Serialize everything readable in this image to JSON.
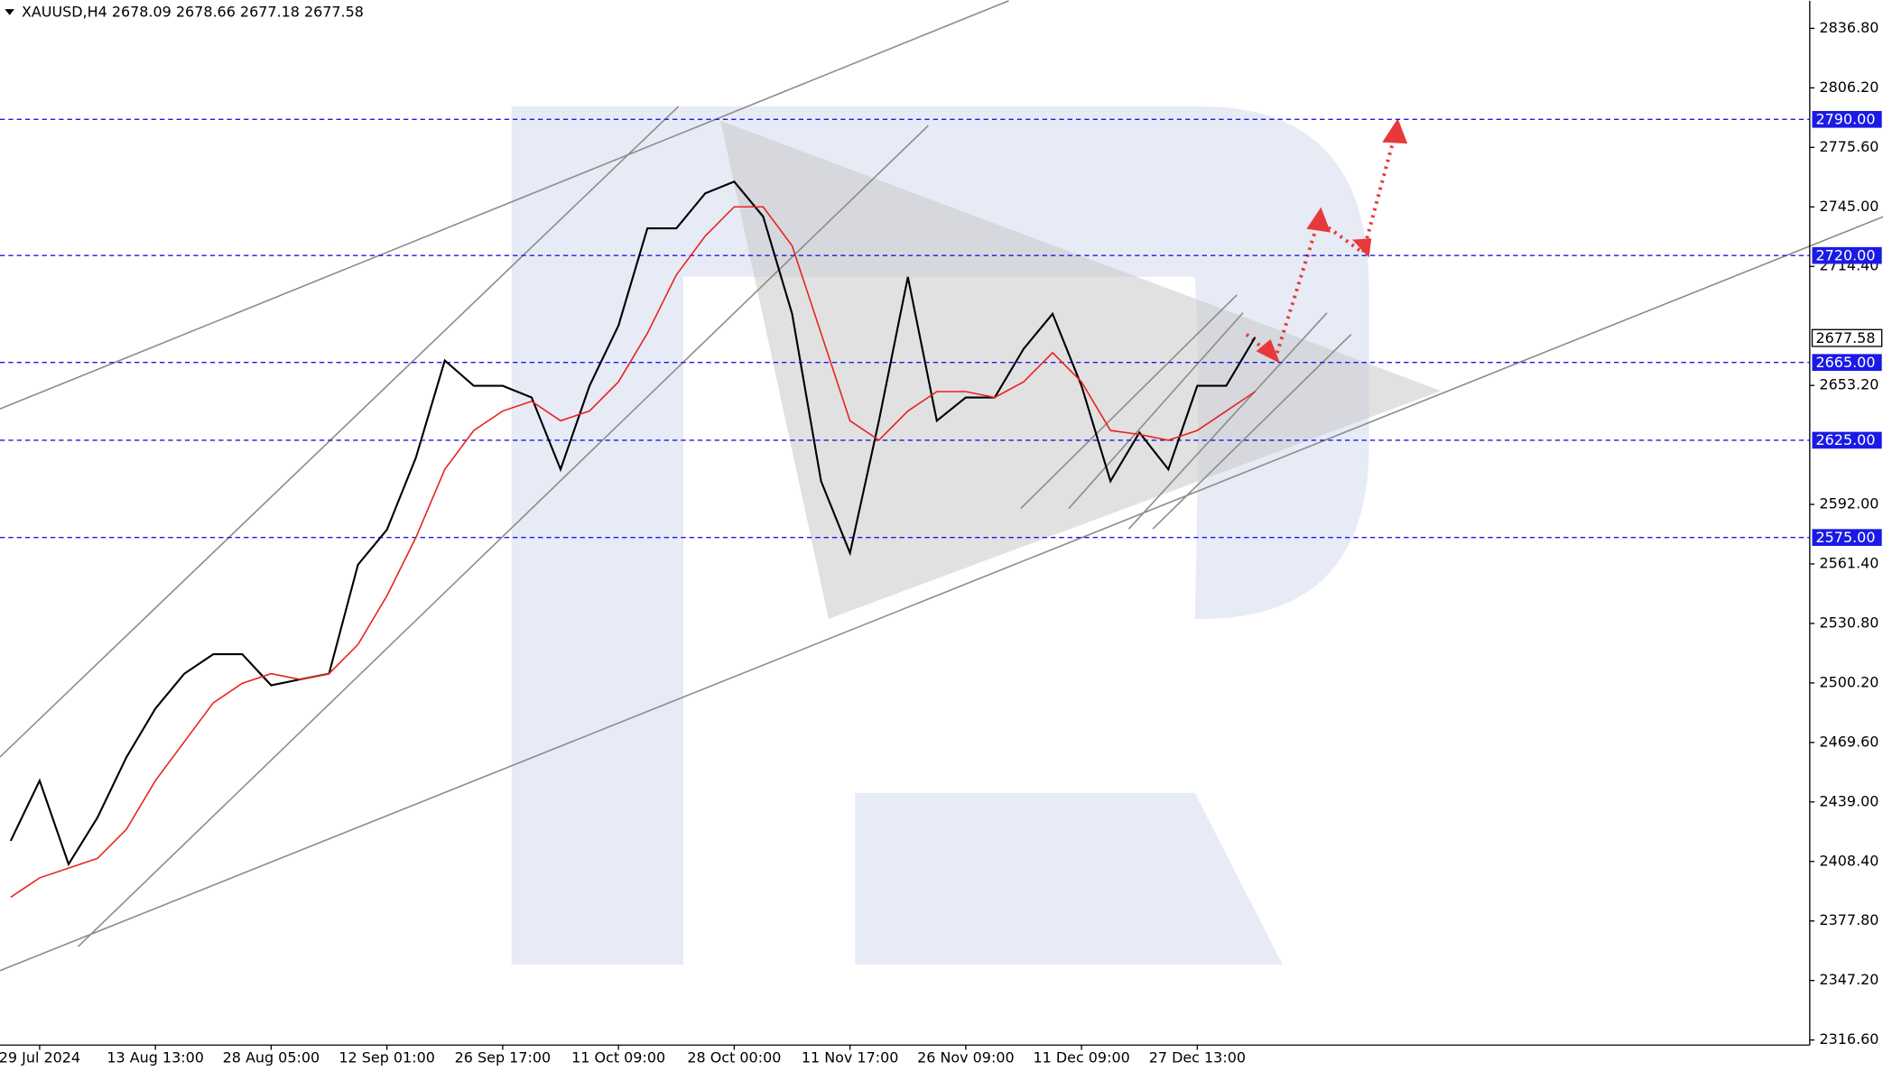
{
  "chart_data": {
    "type": "line",
    "title": "XAUUSD,H4 2678.09 2678.66 2677.18 2677.58",
    "categories": [
      null,
      "29 Jul 2024",
      null,
      null,
      null,
      "13 Aug 13:00",
      null,
      null,
      null,
      "28 Aug 05:00",
      null,
      null,
      null,
      "12 Sep 01:00",
      null,
      null,
      null,
      "26 Sep 17:00",
      null,
      null,
      null,
      "11 Oct 09:00",
      null,
      null,
      null,
      "28 Oct 00:00",
      null,
      null,
      null,
      "11 Nov 17:00",
      null,
      null,
      null,
      "26 Nov 09:00",
      null,
      null,
      null,
      "11 Dec 09:00",
      null,
      null,
      null,
      "27 Dec 13:00",
      null,
      null
    ],
    "series": [
      {
        "color": "#000000",
        "values": [
          2419,
          2450,
          2407,
          2431,
          2462,
          2487,
          2505,
          2515,
          2515,
          2499,
          2502,
          2505,
          2561,
          2579,
          2616,
          2666,
          2653,
          2653,
          2647,
          2610,
          2653,
          2684,
          2734,
          2734,
          2752,
          2758,
          2740,
          2690,
          2604,
          2567,
          2635,
          2709,
          2635,
          2647,
          2647,
          2672,
          2690,
          2653,
          2604,
          2629,
          2610,
          2653,
          2653,
          2678
        ]
      },
      {
        "color": "#e8231f",
        "values": [
          2390,
          2400,
          2405,
          2410,
          2425,
          2450,
          2470,
          2490,
          2500,
          2505,
          2502,
          2505,
          2520,
          2545,
          2575,
          2610,
          2630,
          2640,
          2645,
          2635,
          2640,
          2655,
          2680,
          2710,
          2730,
          2745,
          2745,
          2725,
          2680,
          2635,
          2625,
          2640,
          2650,
          2650,
          2647,
          2655,
          2670,
          2655,
          2630,
          2628,
          2625,
          2630,
          2640,
          2650
        ]
      }
    ],
    "ylim": [
      2314,
      2851
    ],
    "yticks": [
      {
        "value": 2316.6,
        "label": "2316.60"
      },
      {
        "value": 2347.2,
        "label": "2347.20"
      },
      {
        "value": 2377.8,
        "label": "2377.80"
      },
      {
        "value": 2408.4,
        "label": "2408.40"
      },
      {
        "value": 2439,
        "label": "2439.00"
      },
      {
        "value": 2469.6,
        "label": "2469.60"
      },
      {
        "value": 2500.2,
        "label": "2500.20"
      },
      {
        "value": 2530.8,
        "label": "2530.80"
      },
      {
        "value": 2561.4,
        "label": "2561.40"
      },
      {
        "value": 2592,
        "label": "2592.00"
      },
      {
        "value": 2653.2,
        "label": "2653.20"
      },
      {
        "value": 2714.4,
        "label": "2714.40"
      },
      {
        "value": 2745,
        "label": "2745.00"
      },
      {
        "value": 2775.6,
        "label": "2775.60"
      },
      {
        "value": 2806.2,
        "label": "2806.20"
      },
      {
        "value": 2836.8,
        "label": "2836.80"
      }
    ],
    "levels": [
      {
        "value": 2790,
        "label": "2790.00"
      },
      {
        "value": 2720,
        "label": "2720.00"
      },
      {
        "value": 2665,
        "label": "2665.00"
      },
      {
        "value": 2625,
        "label": "2625.00"
      },
      {
        "value": 2575,
        "label": "2575.00"
      }
    ],
    "level_color": "#1a1ae6",
    "last_price": {
      "value": 2677.58,
      "label": "2677.58"
    }
  }
}
